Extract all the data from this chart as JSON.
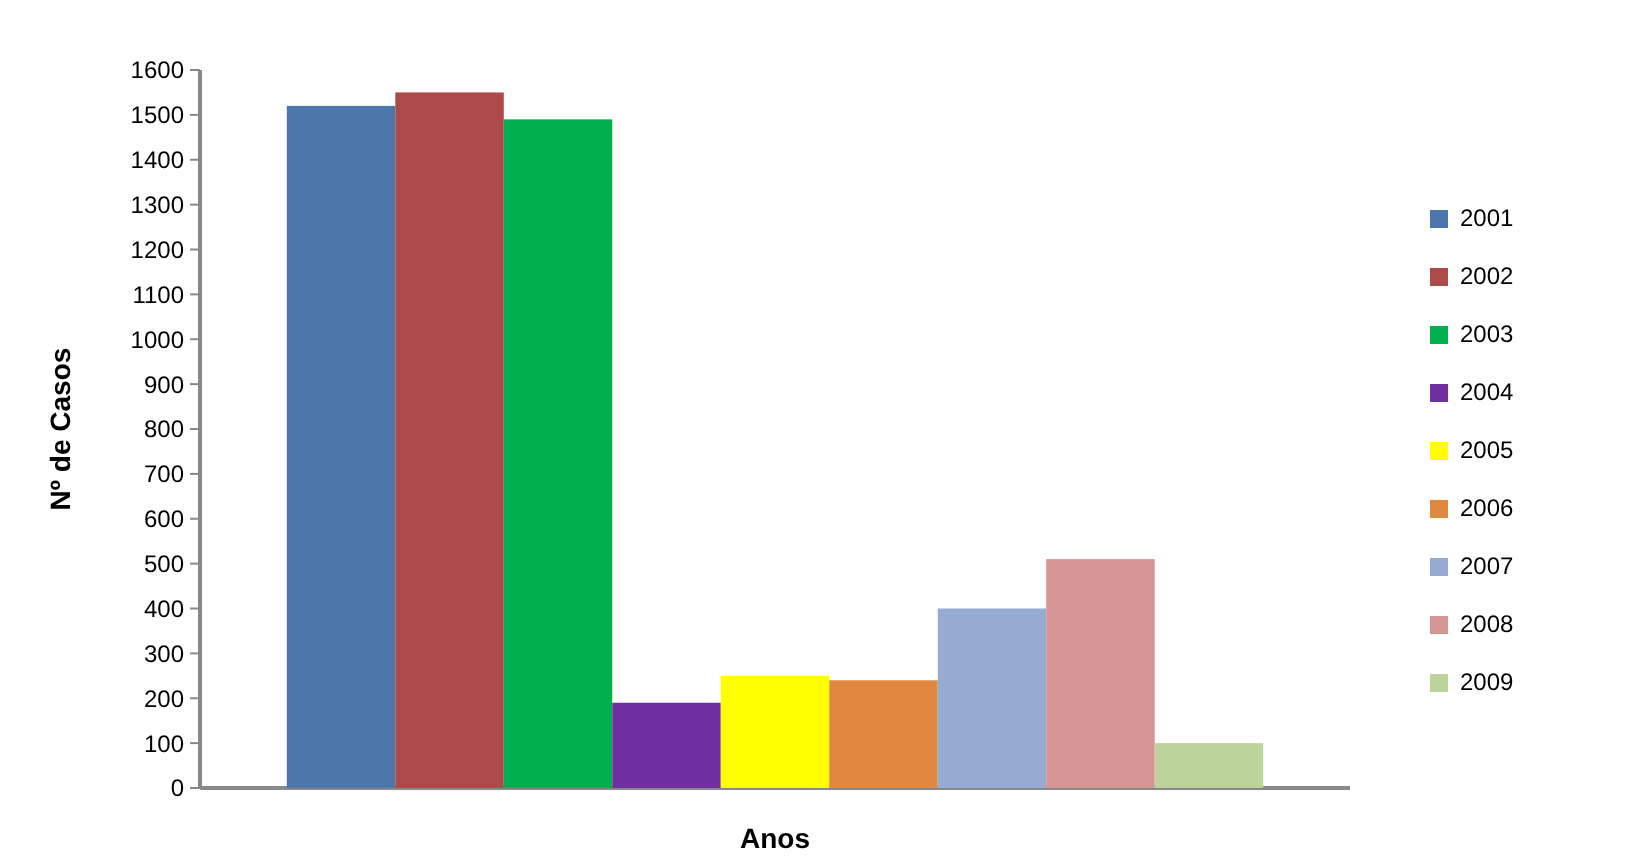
{
  "chart_data": {
    "type": "bar",
    "xlabel": "Anos",
    "ylabel": "Nº de Casos",
    "categories": [
      null
    ],
    "series": [
      {
        "name": "2001",
        "color": "#4a76ab",
        "values": [
          1520
        ]
      },
      {
        "name": "2002",
        "color": "#ac4a47",
        "values": [
          1550
        ]
      },
      {
        "name": "2003",
        "color": "#00b04f",
        "values": [
          1490
        ]
      },
      {
        "name": "2004",
        "color": "#7030a0",
        "values": [
          190
        ]
      },
      {
        "name": "2005",
        "color": "#ffff00",
        "values": [
          250
        ]
      },
      {
        "name": "2006",
        "color": "#e0883f",
        "values": [
          240
        ]
      },
      {
        "name": "2007",
        "color": "#95abd2",
        "values": [
          400
        ]
      },
      {
        "name": "2008",
        "color": "#d69494",
        "values": [
          510
        ]
      },
      {
        "name": "2009",
        "color": "#bcd39c",
        "values": [
          100
        ]
      }
    ],
    "ylim": [
      0,
      1600
    ],
    "yticks": [
      0,
      100,
      200,
      300,
      400,
      500,
      600,
      700,
      800,
      900,
      1000,
      1100,
      1200,
      1300,
      1400,
      1500,
      1600
    ],
    "legend": "right",
    "grid": false
  }
}
